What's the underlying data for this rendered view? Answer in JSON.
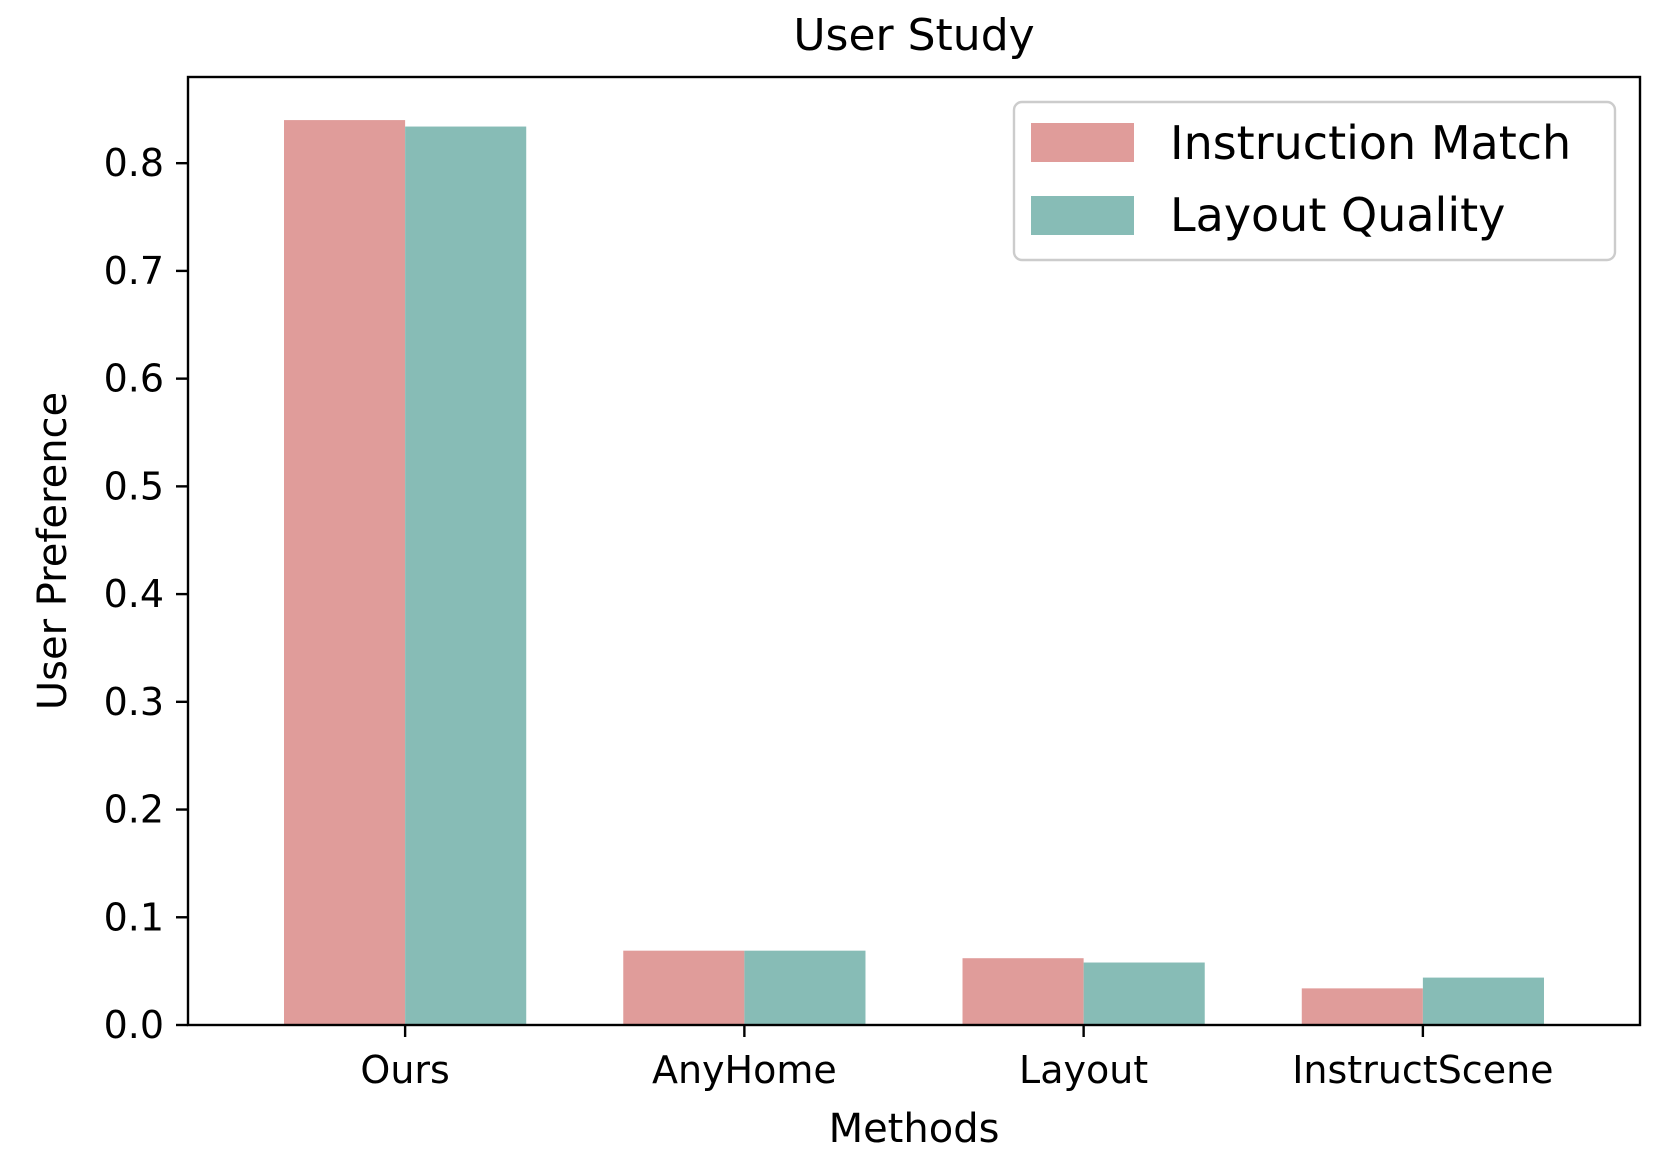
{
  "chart_data": {
    "type": "bar",
    "title": "User Study",
    "xlabel": "Methods",
    "ylabel": "User Preference",
    "categories": [
      "Ours",
      "AnyHome",
      "Layout",
      "InstructScene"
    ],
    "series": [
      {
        "name": "Instruction Match",
        "color": "#e09c9a",
        "values": [
          0.84,
          0.069,
          0.062,
          0.034
        ]
      },
      {
        "name": "Layout Quality",
        "color": "#87bcb6",
        "values": [
          0.834,
          0.069,
          0.058,
          0.044
        ]
      }
    ],
    "ylim": [
      0,
      0.88
    ],
    "yticks": [
      "0.0",
      "0.1",
      "0.2",
      "0.3",
      "0.4",
      "0.5",
      "0.6",
      "0.7",
      "0.8"
    ],
    "grid": false,
    "legend_position": "top-right"
  }
}
